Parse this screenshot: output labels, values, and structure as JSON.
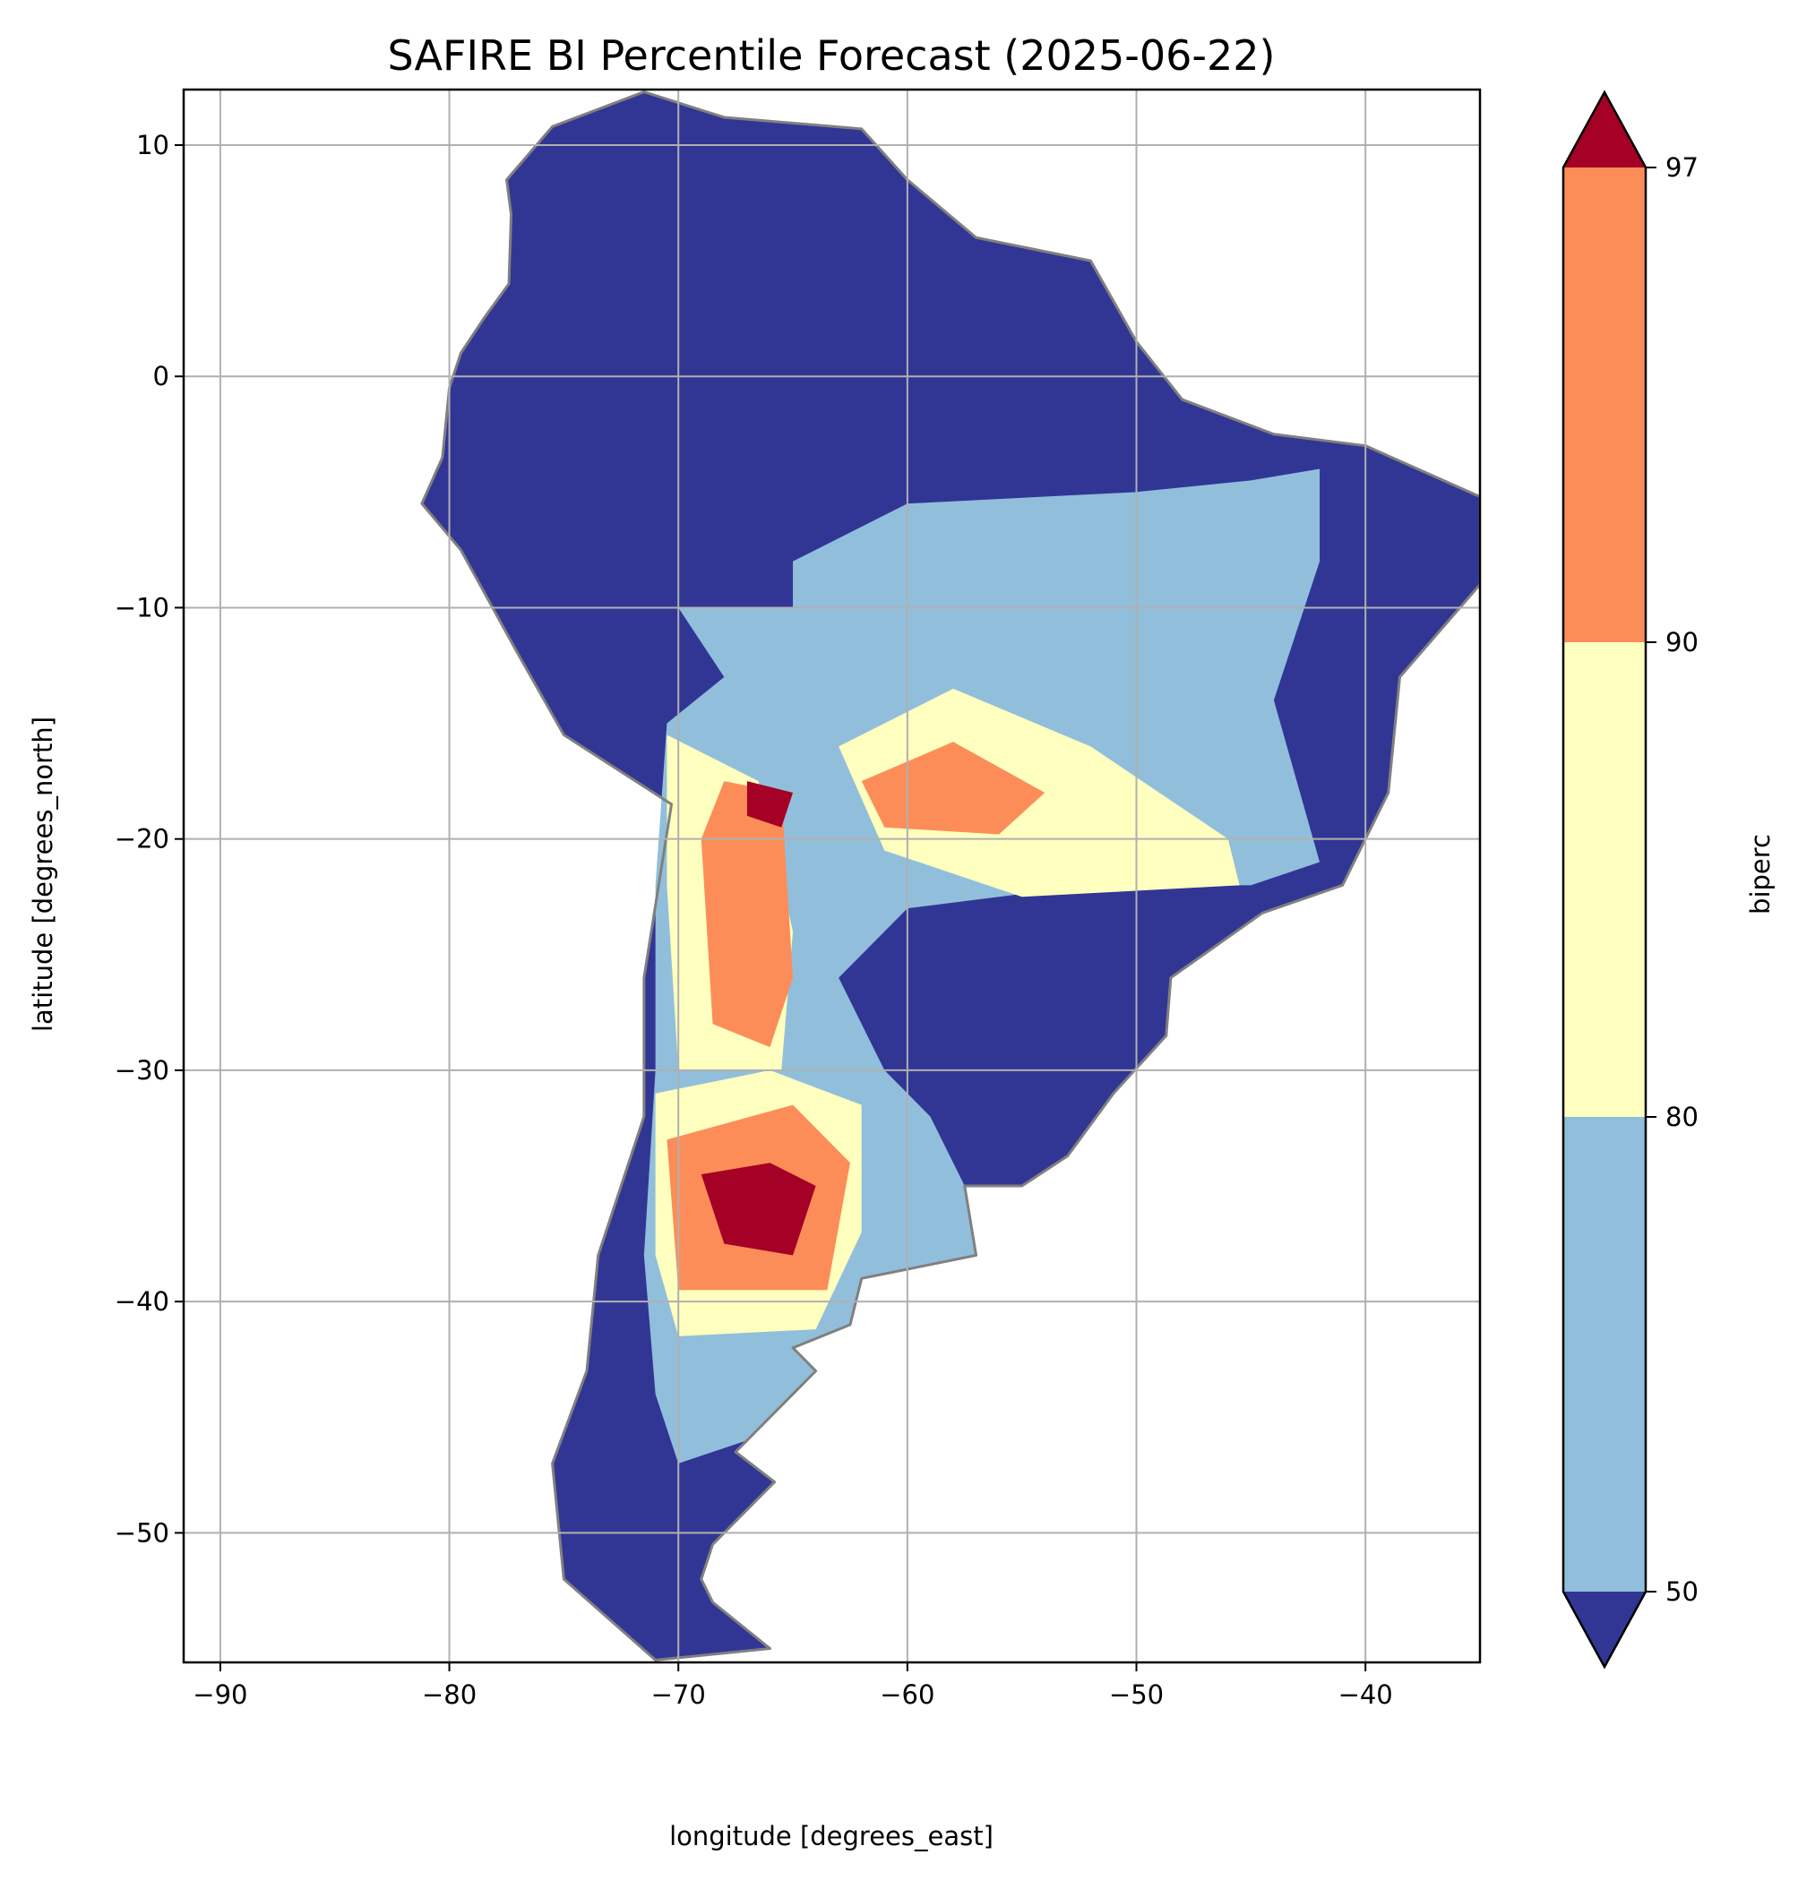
{
  "chart_data": {
    "type": "heatmap",
    "title": "SAFIRE BI Percentile Forecast (2025-06-22)",
    "xlabel": "longitude [degrees_east]",
    "ylabel": "latitude [degrees_north]",
    "xlim": [
      -91.6,
      -35
    ],
    "ylim": [
      -55.6,
      12.4
    ],
    "xticks": [
      -90,
      -80,
      -70,
      -60,
      -50,
      -40
    ],
    "xtick_labels": [
      "−90",
      "−80",
      "−70",
      "−60",
      "−50",
      "−40"
    ],
    "yticks": [
      10,
      0,
      -10,
      -20,
      -30,
      -40,
      -50
    ],
    "ytick_labels": [
      "10",
      "0",
      "−10",
      "−20",
      "−30",
      "−40",
      "−50"
    ],
    "grid": true,
    "colorbar": {
      "label": "biperc",
      "levels": [
        50,
        80,
        90,
        97
      ],
      "tick_labels": [
        "50",
        "80",
        "90",
        "97"
      ],
      "extend": "both",
      "colors": {
        "under": "#313695",
        "50-80": "#91bfdb",
        "80-90": "#ffffbf",
        "90-97": "#fc8d59",
        "over": "#a50026"
      }
    },
    "border_color": "#808080"
  }
}
